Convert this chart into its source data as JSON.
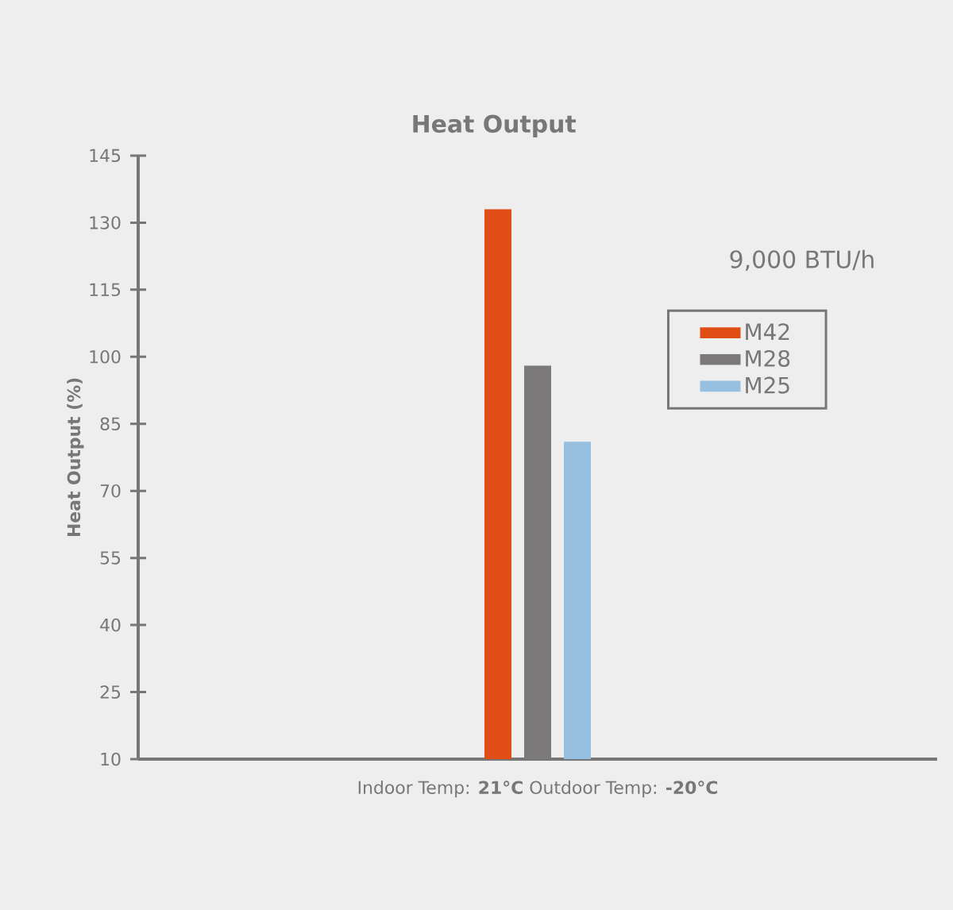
{
  "chart_data": {
    "type": "bar",
    "title": "Heat Output",
    "ylabel": "Heat Output (%)",
    "legend_title": "9,000 BTU/h",
    "categories": [
      "Indoor Temp: **21°C** Outdoor Temp: **-20°C**"
    ],
    "series": [
      {
        "name": "M42",
        "color": "#e04e16",
        "values": [
          133
        ]
      },
      {
        "name": "M28",
        "color": "#7b797a",
        "values": [
          98
        ]
      },
      {
        "name": "M25",
        "color": "#97bfe0",
        "values": [
          81
        ]
      }
    ],
    "ylim": [
      10,
      145
    ],
    "yticks": [
      10,
      25,
      40,
      55,
      70,
      85,
      100,
      115,
      130,
      145
    ],
    "legend": "right"
  }
}
